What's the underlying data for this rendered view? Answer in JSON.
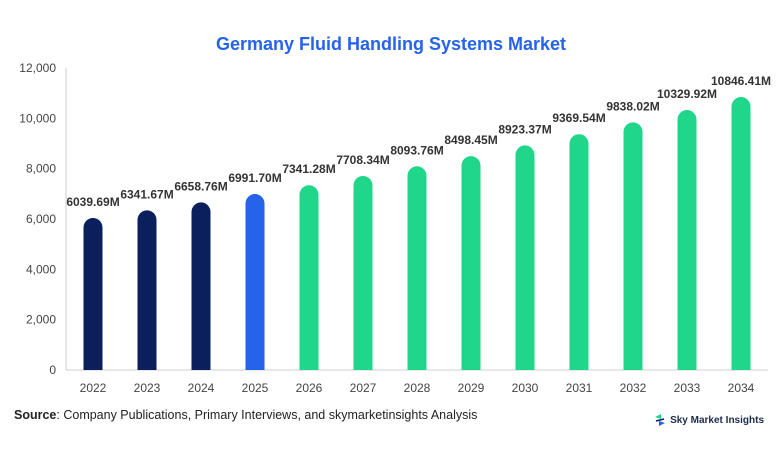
{
  "chart_data": {
    "type": "bar",
    "title": "Germany Fluid Handling Systems Market",
    "categories": [
      "2022",
      "2023",
      "2024",
      "2025",
      "2026",
      "2027",
      "2028",
      "2029",
      "2030",
      "2031",
      "2032",
      "2033",
      "2034"
    ],
    "values": [
      6039.69,
      6341.67,
      6658.76,
      6991.7,
      7341.28,
      7708.34,
      8093.76,
      8498.45,
      8923.37,
      9369.54,
      9838.02,
      10329.92,
      10846.41
    ],
    "data_labels": [
      "6039.69M",
      "6341.67M",
      "6658.76M",
      "6991.70M",
      "7341.28M",
      "7708.34M",
      "8093.76M",
      "8498.45M",
      "8923.37M",
      "9369.54M",
      "9838.02M",
      "10329.92M",
      "10846.41M"
    ],
    "bar_colors": [
      "#0b1f5c",
      "#0b1f5c",
      "#0b1f5c",
      "#2563eb",
      "#1fd68a",
      "#1fd68a",
      "#1fd68a",
      "#1fd68a",
      "#1fd68a",
      "#1fd68a",
      "#1fd68a",
      "#1fd68a",
      "#1fd68a"
    ],
    "yticks": [
      "0",
      "2,000",
      "4,000",
      "6,000",
      "8,000",
      "10,000",
      "12,000"
    ],
    "ylim": [
      0,
      12000
    ],
    "xlabel": "",
    "ylabel": "",
    "grid": false
  },
  "source": {
    "label": "Source",
    "text": ": Company Publications, Primary Interviews, and skymarketinsights Analysis"
  },
  "brand": {
    "name": "Sky Market Insights",
    "icon": "sky-market-insights-logo-icon"
  },
  "colors": {
    "title": "#2563eb",
    "historical": "#0b1f5c",
    "base_year": "#2563eb",
    "forecast": "#1fd68a"
  }
}
